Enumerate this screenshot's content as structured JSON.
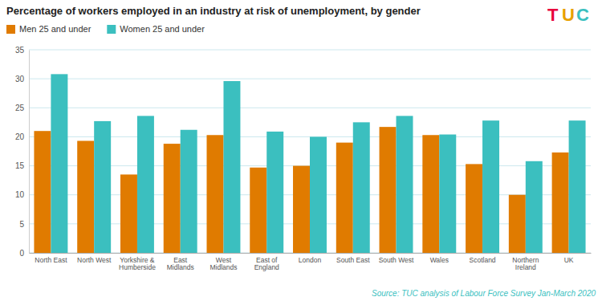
{
  "chart_data": {
    "type": "bar",
    "title": "Percentage of workers employed in an industry at risk of unemployment, by gender",
    "categories": [
      "North East",
      "North West",
      "Yorkshire &\nHumberside",
      "East\nMidlands",
      "West\nMidlands",
      "East of\nEngland",
      "London",
      "South East",
      "South West",
      "Wales",
      "Scotland",
      "Northern\nIreland",
      "UK"
    ],
    "series": [
      {
        "name": "Men 25 and under",
        "color": "#E07B00",
        "values": [
          21.0,
          19.3,
          13.5,
          18.8,
          20.3,
          14.7,
          15.0,
          19.0,
          21.7,
          20.3,
          15.3,
          10.0,
          17.3
        ]
      },
      {
        "name": "Women 25 and under",
        "color": "#3BBFBF",
        "values": [
          30.8,
          22.7,
          23.6,
          21.2,
          29.6,
          20.9,
          20.0,
          22.5,
          23.6,
          20.4,
          22.8,
          15.8,
          22.8
        ]
      }
    ],
    "ylim": [
      0,
      35
    ],
    "yticks": [
      0,
      5,
      10,
      15,
      20,
      25,
      30,
      35
    ],
    "grid": true,
    "legend": "upper left",
    "annotations": [
      {
        "text": "Source: TUC analysis of Labour Force Survey Jan-March 2020",
        "color": "#3BBFBF"
      },
      {
        "text": "T",
        "color": "#e8003d"
      },
      {
        "text": "U",
        "color": "#e8a000"
      },
      {
        "text": "C",
        "color": "#3BBFBF"
      }
    ]
  }
}
